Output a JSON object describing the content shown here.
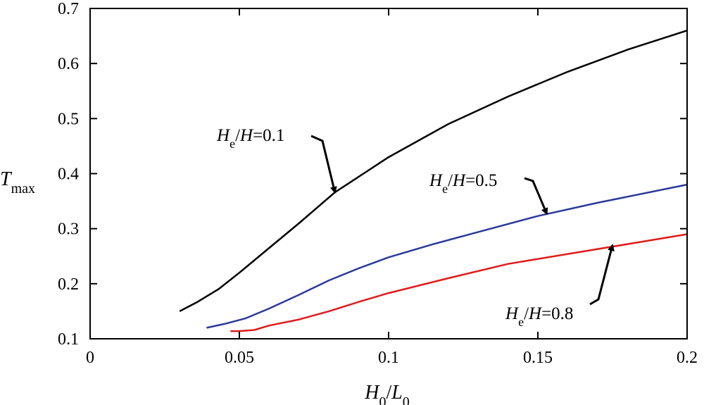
{
  "chart_data": {
    "type": "line",
    "title": "",
    "xlabel": {
      "main": "H",
      "sub": "0",
      "sep": "/",
      "main2": "L",
      "sub2": "0"
    },
    "ylabel": {
      "main": "T",
      "sub": "max"
    },
    "xlim": [
      0,
      0.2
    ],
    "ylim": [
      0.1,
      0.7
    ],
    "x_ticks": [
      0,
      0.05,
      0.1,
      0.15,
      0.2
    ],
    "x_tick_labels": [
      "0",
      "0.05",
      "0.1",
      "0.15",
      "0.2"
    ],
    "y_ticks": [
      0.1,
      0.2,
      0.3,
      0.4,
      0.5,
      0.6,
      0.7
    ],
    "y_tick_labels": [
      "0.1",
      "0.2",
      "0.3",
      "0.4",
      "0.5",
      "0.6",
      "0.7"
    ],
    "grid": false,
    "series": [
      {
        "color": "#000000",
        "x": [
          0.03,
          0.036,
          0.043,
          0.05,
          0.06,
          0.07,
          0.082,
          0.1,
          0.12,
          0.14,
          0.16,
          0.18,
          0.2
        ],
        "y": [
          0.15,
          0.167,
          0.19,
          0.22,
          0.265,
          0.31,
          0.366,
          0.43,
          0.49,
          0.54,
          0.585,
          0.625,
          0.66
        ]
      },
      {
        "color": "#2b3a9a",
        "x": [
          0.039,
          0.045,
          0.052,
          0.06,
          0.07,
          0.08,
          0.09,
          0.1,
          0.115,
          0.13,
          0.15,
          0.17,
          0.2
        ],
        "y": [
          0.12,
          0.127,
          0.137,
          0.155,
          0.18,
          0.206,
          0.228,
          0.248,
          0.272,
          0.294,
          0.323,
          0.347,
          0.38
        ]
      },
      {
        "color": "#e01b1b",
        "x": [
          0.047,
          0.05,
          0.055,
          0.06,
          0.07,
          0.08,
          0.09,
          0.1,
          0.12,
          0.14,
          0.16,
          0.18,
          0.2
        ],
        "y": [
          0.114,
          0.114,
          0.116,
          0.124,
          0.135,
          0.15,
          0.167,
          0.183,
          0.21,
          0.236,
          0.254,
          0.272,
          0.29
        ]
      }
    ],
    "annotations": [
      {
        "pre": "H",
        "sub": "e",
        "mid": "/",
        "it2": "H",
        "value": "=0.1",
        "series": 0,
        "point": [
          0.082,
          0.366
        ]
      },
      {
        "pre": "H",
        "sub": "e",
        "mid": "/",
        "it2": "H",
        "value": "=0.5",
        "series": 1,
        "point": [
          0.153,
          0.327
        ]
      },
      {
        "pre": "H",
        "sub": "e",
        "mid": "/",
        "it2": "H",
        "value": "=0.8",
        "series": 2,
        "point": [
          0.175,
          0.27
        ]
      }
    ]
  }
}
